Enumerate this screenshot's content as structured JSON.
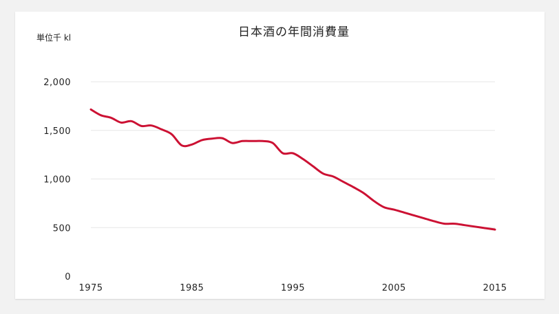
{
  "chart_data": {
    "type": "line",
    "title": "日本酒の年間消費量",
    "unit_label": "単位千 kl",
    "xlabel": "",
    "ylabel": "",
    "xlim": [
      1975,
      2015
    ],
    "ylim": [
      0,
      2000
    ],
    "y_ticks": [
      {
        "value": 0,
        "label": "0"
      },
      {
        "value": 500,
        "label": "500"
      },
      {
        "value": 1000,
        "label": "1,000"
      },
      {
        "value": 1500,
        "label": "1,500"
      },
      {
        "value": 2000,
        "label": "2,000"
      }
    ],
    "x_ticks": [
      {
        "value": 1975,
        "label": "1975"
      },
      {
        "value": 1985,
        "label": "1985"
      },
      {
        "value": 1995,
        "label": "1995"
      },
      {
        "value": 2005,
        "label": "2005"
      },
      {
        "value": 2015,
        "label": "2015"
      }
    ],
    "grid": true,
    "color": "#cc1133",
    "series": [
      {
        "x": [
          1975,
          1976,
          1977,
          1978,
          1979,
          1980,
          1981,
          1982,
          1983,
          1984,
          1985,
          1986,
          1987,
          1988,
          1989,
          1990,
          1991,
          1992,
          1993,
          1994,
          1995,
          1996,
          1997,
          1998,
          1999,
          2000,
          2001,
          2002,
          2003,
          2004,
          2005,
          2006,
          2007,
          2008,
          2009,
          2010,
          2011,
          2012,
          2013,
          2014,
          2015
        ],
        "y": [
          1715,
          1655,
          1630,
          1580,
          1595,
          1545,
          1550,
          1510,
          1460,
          1345,
          1355,
          1400,
          1415,
          1420,
          1370,
          1390,
          1390,
          1390,
          1370,
          1265,
          1265,
          1205,
          1130,
          1055,
          1025,
          970,
          915,
          855,
          775,
          710,
          685,
          655,
          625,
          595,
          565,
          540,
          540,
          525,
          510,
          495,
          480
        ]
      }
    ]
  }
}
